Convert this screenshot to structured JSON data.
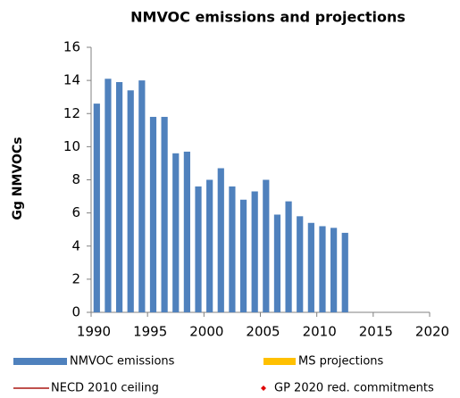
{
  "chart_data": {
    "type": "bar",
    "title": "NMVOC emissions and projections",
    "y_label": "Gg NMVOCs",
    "xlim": [
      1990,
      2020
    ],
    "xticks": [
      1990,
      1995,
      2000,
      2005,
      2010,
      2015,
      2020
    ],
    "ylim": [
      0,
      16
    ],
    "yticks": [
      0,
      2,
      4,
      6,
      8,
      10,
      12,
      14,
      16
    ],
    "grid": false,
    "series": [
      {
        "name": "NMVOC emissions",
        "color": "#4f81bd",
        "kind": "bar",
        "x": [
          1990,
          1991,
          1992,
          1993,
          1994,
          1995,
          1996,
          1997,
          1998,
          1999,
          2000,
          2001,
          2002,
          2003,
          2004,
          2005,
          2006,
          2007,
          2008,
          2009,
          2010,
          2011,
          2012
        ],
        "values": [
          12.6,
          14.1,
          13.9,
          13.4,
          14.0,
          11.8,
          11.8,
          9.6,
          9.7,
          7.6,
          8.0,
          8.7,
          7.6,
          6.8,
          7.3,
          8.0,
          5.9,
          6.7,
          5.8,
          5.4,
          5.2,
          5.1,
          4.8
        ]
      },
      {
        "name": "MS projections",
        "color": "#ffc000",
        "kind": "bar",
        "x": [],
        "values": []
      },
      {
        "name": "NECD 2010 ceiling",
        "color": "#c0504d",
        "kind": "line",
        "x": [],
        "values": []
      },
      {
        "name": "GP 2020 red. commitments",
        "color": "#e00000",
        "kind": "marker",
        "x": [],
        "values": []
      }
    ]
  }
}
